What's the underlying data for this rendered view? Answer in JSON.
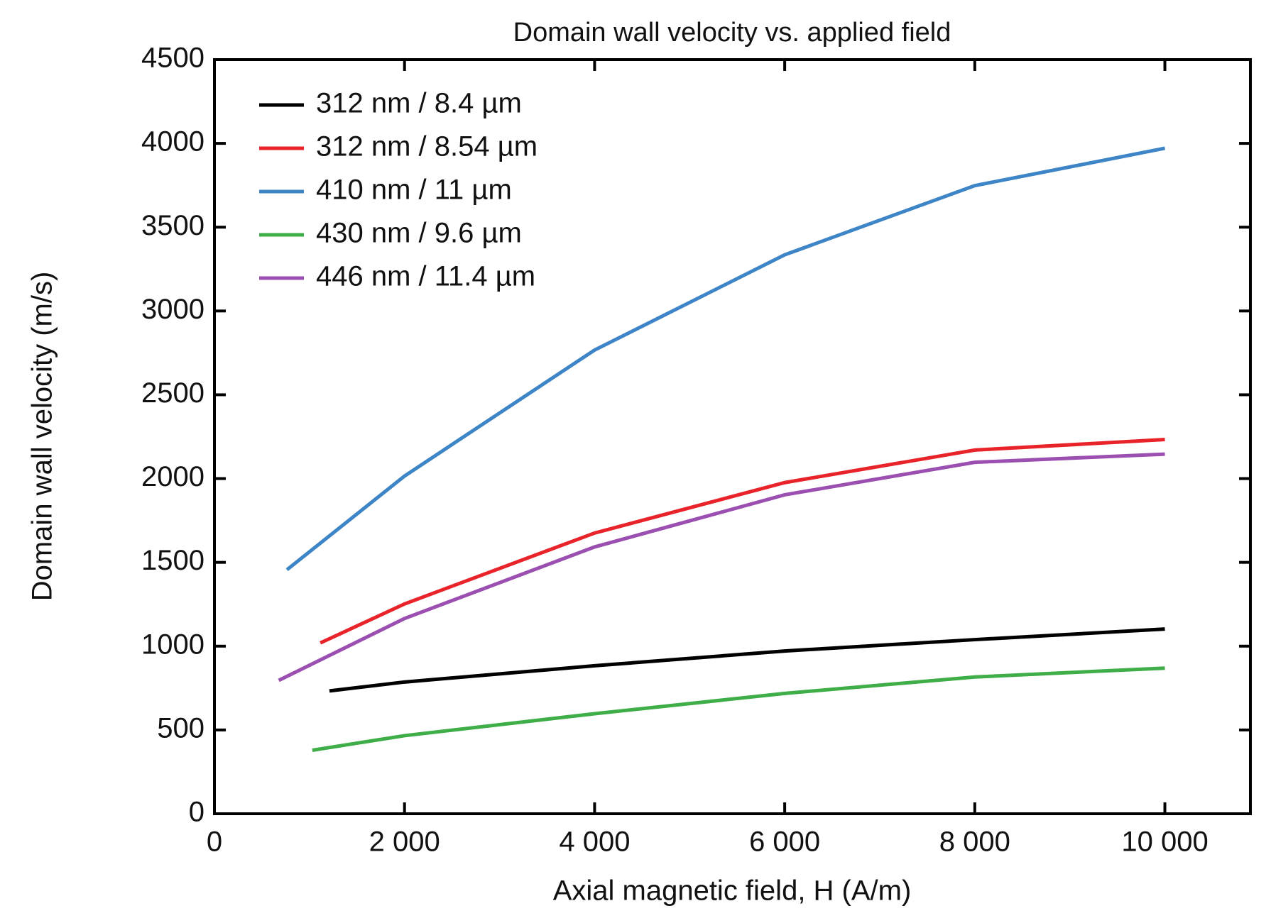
{
  "chart_data": {
    "type": "line",
    "title": "Domain wall velocity vs. applied field",
    "xlabel": "Axial magnetic field, H (A/m)",
    "ylabel": "Domain wall velocity (m/s)",
    "xlim": [
      0,
      10900
    ],
    "ylim": [
      0,
      4500
    ],
    "xticks": [
      0,
      {
        "value": 2000,
        "label": "2 000"
      },
      {
        "value": 4000,
        "label": "4 000"
      },
      {
        "value": 6000,
        "label": "6 000"
      },
      {
        "value": 8000,
        "label": "8 000"
      },
      {
        "value": 10000,
        "label": "10 000"
      }
    ],
    "yticks": [
      0,
      500,
      1000,
      1500,
      2000,
      2500,
      3000,
      3500,
      4000,
      4500
    ],
    "legend": "upper left",
    "series": [
      {
        "name": "312 nm / 8.4 µm",
        "color": "#000000",
        "x": [
          1210,
          2000,
          4000,
          6000,
          8000,
          10000
        ],
        "values": [
          733,
          786,
          883,
          971,
          1039,
          1102
        ]
      },
      {
        "name": "312 nm / 8.54 µm",
        "color": "#e8242a",
        "x": [
          1114,
          2000,
          4000,
          6000,
          8000,
          10000
        ],
        "values": [
          1019,
          1252,
          1675,
          1976,
          2170,
          2233
        ]
      },
      {
        "name": "410 nm / 11 µm",
        "color": "#3d85c6",
        "x": [
          763,
          2000,
          4000,
          6000,
          8000,
          10000
        ],
        "values": [
          1456,
          2015,
          2767,
          3335,
          3748,
          3971
        ]
      },
      {
        "name": "430 nm / 9.6 µm",
        "color": "#3fae49",
        "x": [
          1030,
          2000,
          4000,
          6000,
          8000,
          10000
        ],
        "values": [
          379,
          466,
          597,
          718,
          816,
          869
        ]
      },
      {
        "name": "446 nm / 11.4 µm",
        "color": "#9b4fb0",
        "x": [
          677,
          2000,
          4000,
          6000,
          8000,
          10000
        ],
        "values": [
          796,
          1165,
          1592,
          1903,
          2097,
          2146
        ]
      }
    ]
  }
}
